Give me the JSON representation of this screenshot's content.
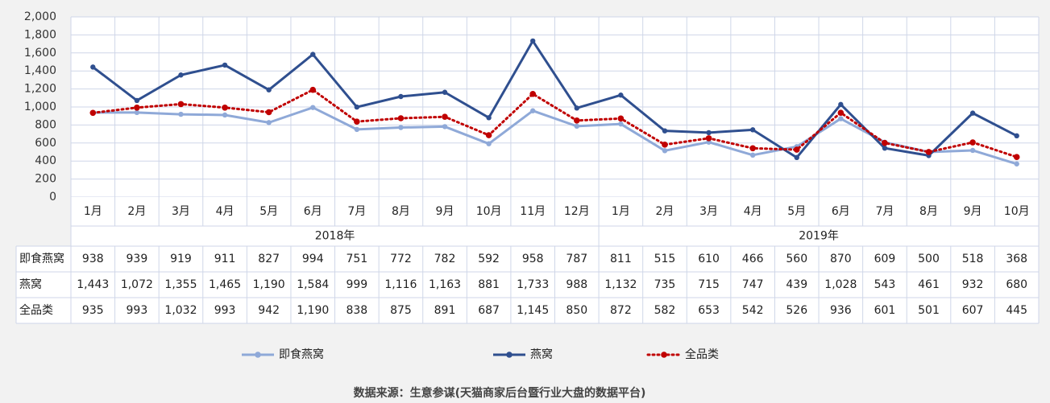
{
  "chart_data": {
    "type": "line",
    "ylim": [
      0,
      2000
    ],
    "yticks": [
      "0",
      "200",
      "400",
      "600",
      "800",
      "1,000",
      "1,200",
      "1,400",
      "1,600",
      "1,800",
      "2,000"
    ],
    "grid": true,
    "legend_position": "bottom",
    "categories": [
      "1月",
      "2月",
      "3月",
      "4月",
      "5月",
      "6月",
      "7月",
      "8月",
      "9月",
      "10月",
      "11月",
      "12月",
      "1月",
      "2月",
      "3月",
      "4月",
      "5月",
      "6月",
      "7月",
      "8月",
      "9月",
      "10月"
    ],
    "years": [
      {
        "label": "2018年",
        "span": [
          0,
          11
        ]
      },
      {
        "label": "2019年",
        "span": [
          12,
          21
        ]
      }
    ],
    "series": [
      {
        "name": "即食燕窝",
        "color": "#8fa9d8",
        "style": "solid",
        "values": [
          938,
          939,
          919,
          911,
          827,
          994,
          751,
          772,
          782,
          592,
          958,
          787,
          811,
          515,
          610,
          466,
          560,
          870,
          609,
          500,
          518,
          368
        ],
        "labels": [
          "938",
          "939",
          "919",
          "911",
          "827",
          "994",
          "751",
          "772",
          "782",
          "592",
          "958",
          "787",
          "811",
          "515",
          "610",
          "466",
          "560",
          "870",
          "609",
          "500",
          "518",
          "368"
        ]
      },
      {
        "name": "燕窝",
        "color": "#2f4f8f",
        "style": "solid",
        "values": [
          1443,
          1072,
          1355,
          1465,
          1190,
          1584,
          999,
          1116,
          1163,
          881,
          1733,
          988,
          1132,
          735,
          715,
          747,
          439,
          1028,
          543,
          461,
          932,
          680
        ],
        "labels": [
          "1,443",
          "1,072",
          "1,355",
          "1,465",
          "1,190",
          "1,584",
          "999",
          "1,116",
          "1,163",
          "881",
          "1,733",
          "988",
          "1,132",
          "735",
          "715",
          "747",
          "439",
          "1,028",
          "543",
          "461",
          "932",
          "680"
        ]
      },
      {
        "name": "全品类",
        "color": "#c00000",
        "style": "dotted",
        "values": [
          935,
          993,
          1032,
          993,
          942,
          1190,
          838,
          875,
          891,
          687,
          1145,
          850,
          872,
          582,
          653,
          542,
          526,
          936,
          601,
          501,
          607,
          445
        ],
        "labels": [
          "935",
          "993",
          "1,032",
          "993",
          "942",
          "1,190",
          "838",
          "875",
          "891",
          "687",
          "1,145",
          "850",
          "872",
          "582",
          "653",
          "542",
          "526",
          "936",
          "601",
          "501",
          "607",
          "445"
        ]
      }
    ]
  },
  "source_note": "数据来源：生意参谋(天猫商家后台暨行业大盘的数据平台)"
}
